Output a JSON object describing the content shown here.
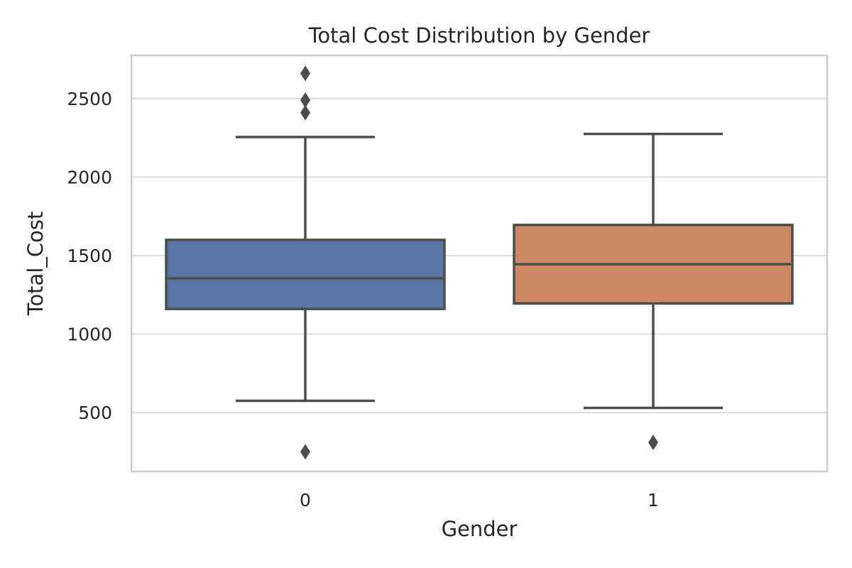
{
  "chart_data": {
    "type": "box",
    "title": "Total Cost Distribution by Gender",
    "xlabel": "Gender",
    "ylabel": "Total_Cost",
    "categories": [
      "0",
      "1"
    ],
    "ylim": [
      125,
      2775
    ],
    "yticks": [
      500,
      1000,
      1500,
      2000,
      2500
    ],
    "grid": "horizontal",
    "series": [
      {
        "category": "0",
        "color": "#5875a4",
        "whisker_low": 575,
        "q1": 1160,
        "median": 1355,
        "q3": 1600,
        "whisker_high": 2255,
        "outliers": [
          250,
          2410,
          2490,
          2660
        ]
      },
      {
        "category": "1",
        "color": "#cc8963",
        "whisker_low": 530,
        "q1": 1195,
        "median": 1445,
        "q3": 1695,
        "whisker_high": 2275,
        "outliers": [
          310
        ]
      }
    ]
  },
  "colors": {
    "line": "#4d4d4d",
    "grid": "#dcdcdc",
    "frame": "#cccccc",
    "text": "#262626"
  }
}
